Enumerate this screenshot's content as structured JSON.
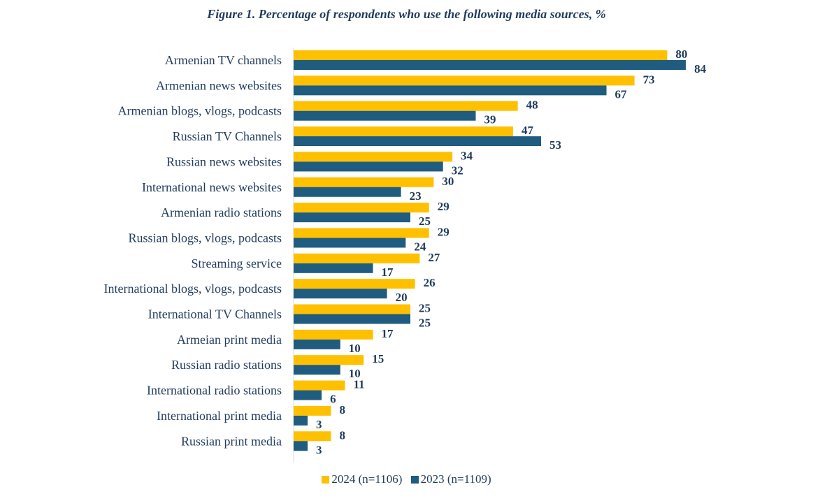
{
  "chart_data": {
    "type": "bar",
    "orientation": "horizontal",
    "title": "Figure 1. Percentage of respondents who use the following media sources, %",
    "categories": [
      "Armenian TV channels",
      "Armenian news websites",
      "Armenian blogs, vlogs, podcasts",
      "Russian TV Channels",
      "Russian news websites",
      "International news websites",
      "Armenian radio stations",
      "Russian blogs, vlogs, podcasts",
      "Streaming service",
      "International blogs, vlogs, podcasts",
      "International TV Channels",
      "Armeian print media",
      "Russian radio stations",
      "International radio stations",
      "International print media",
      "Russian print media"
    ],
    "series": [
      {
        "name": "2024 (n=1106)",
        "color": "#FFC000",
        "values": [
          80,
          73,
          48,
          47,
          34,
          30,
          29,
          29,
          27,
          26,
          25,
          17,
          15,
          11,
          8,
          8
        ]
      },
      {
        "name": "2023 (n=1109)",
        "color": "#1F5C7F",
        "values": [
          84,
          67,
          39,
          53,
          32,
          23,
          25,
          24,
          17,
          20,
          25,
          10,
          10,
          6,
          3,
          3
        ]
      }
    ],
    "xlim": [
      0,
      90
    ],
    "grid": false,
    "legend": "bottom-center"
  }
}
